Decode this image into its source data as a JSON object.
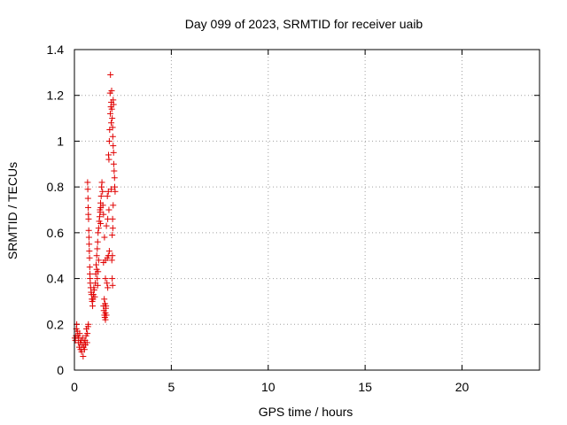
{
  "chart_data": {
    "type": "scatter",
    "title": "Day 099 of 2023, SRMTID for receiver uaib",
    "xlabel": "GPS time / hours",
    "ylabel": "SRMTID / TECUs",
    "xlim": [
      0,
      24
    ],
    "ylim": [
      0,
      1.4
    ],
    "xticks": [
      0,
      5,
      10,
      15,
      20
    ],
    "xtick_labels": [
      "0",
      "5",
      "10",
      "15",
      "20"
    ],
    "yticks": [
      0,
      0.2,
      0.4,
      0.6,
      0.8,
      1.0,
      1.2,
      1.4
    ],
    "ytick_labels": [
      "0",
      "0.2",
      "0.4",
      "0.6",
      "0.8",
      "1",
      "1.2",
      "1.4"
    ],
    "grid": true,
    "marker": "+",
    "marker_color": "#e00000",
    "series": [
      {
        "points": [
          [
            0.02,
            0.14
          ],
          [
            0.05,
            0.13
          ],
          [
            0.08,
            0.15
          ],
          [
            0.1,
            0.18
          ],
          [
            0.12,
            0.2
          ],
          [
            0.15,
            0.17
          ],
          [
            0.18,
            0.15
          ],
          [
            0.2,
            0.12
          ],
          [
            0.22,
            0.14
          ],
          [
            0.25,
            0.1
          ],
          [
            0.27,
            0.16
          ],
          [
            0.3,
            0.12
          ],
          [
            0.32,
            0.09
          ],
          [
            0.35,
            0.13
          ],
          [
            0.37,
            0.08
          ],
          [
            0.4,
            0.11
          ],
          [
            0.42,
            0.14
          ],
          [
            0.45,
            0.06
          ],
          [
            0.47,
            0.1
          ],
          [
            0.5,
            0.12
          ],
          [
            0.52,
            0.09
          ],
          [
            0.55,
            0.13
          ],
          [
            0.57,
            0.11
          ],
          [
            0.6,
            0.15
          ],
          [
            0.62,
            0.18
          ],
          [
            0.65,
            0.12
          ],
          [
            0.67,
            0.16
          ],
          [
            0.7,
            0.19
          ],
          [
            0.72,
            0.2
          ],
          [
            0.68,
            0.82
          ],
          [
            0.69,
            0.79
          ],
          [
            0.7,
            0.75
          ],
          [
            0.71,
            0.71
          ],
          [
            0.72,
            0.68
          ],
          [
            0.73,
            0.66
          ],
          [
            0.74,
            0.61
          ],
          [
            0.75,
            0.58
          ],
          [
            0.76,
            0.55
          ],
          [
            0.77,
            0.52
          ],
          [
            0.78,
            0.49
          ],
          [
            0.79,
            0.45
          ],
          [
            0.8,
            0.42
          ],
          [
            0.81,
            0.4
          ],
          [
            0.82,
            0.38
          ],
          [
            0.84,
            0.36
          ],
          [
            0.86,
            0.34
          ],
          [
            0.88,
            0.33
          ],
          [
            0.9,
            0.31
          ],
          [
            0.92,
            0.3
          ],
          [
            0.94,
            0.28
          ],
          [
            0.96,
            0.31
          ],
          [
            0.98,
            0.33
          ],
          [
            1.0,
            0.36
          ],
          [
            1.02,
            0.35
          ],
          [
            1.05,
            0.32
          ],
          [
            1.08,
            0.38
          ],
          [
            1.1,
            0.42
          ],
          [
            1.12,
            0.46
          ],
          [
            1.15,
            0.5
          ],
          [
            1.18,
            0.53
          ],
          [
            1.2,
            0.56
          ],
          [
            1.22,
            0.6
          ],
          [
            1.25,
            0.62
          ],
          [
            1.28,
            0.65
          ],
          [
            1.3,
            0.67
          ],
          [
            1.32,
            0.7
          ],
          [
            1.35,
            0.73
          ],
          [
            1.38,
            0.76
          ],
          [
            1.4,
            0.8
          ],
          [
            1.42,
            0.82
          ],
          [
            1.45,
            0.78
          ],
          [
            1.47,
            0.72
          ],
          [
            1.5,
            0.68
          ],
          [
            1.35,
            0.64
          ],
          [
            1.33,
            0.69
          ],
          [
            1.36,
            0.71
          ],
          [
            1.15,
            0.44
          ],
          [
            1.18,
            0.4
          ],
          [
            1.2,
            0.37
          ],
          [
            1.22,
            0.43
          ],
          [
            1.25,
            0.48
          ],
          [
            1.5,
            0.28
          ],
          [
            1.52,
            0.26
          ],
          [
            1.55,
            0.24
          ],
          [
            1.57,
            0.23
          ],
          [
            1.6,
            0.25
          ],
          [
            1.62,
            0.27
          ],
          [
            1.65,
            0.24
          ],
          [
            1.58,
            0.29
          ],
          [
            1.54,
            0.31
          ],
          [
            1.6,
            0.22
          ],
          [
            1.63,
            0.28
          ],
          [
            1.5,
            0.47
          ],
          [
            1.55,
            0.58
          ],
          [
            1.6,
            0.48
          ],
          [
            1.65,
            0.63
          ],
          [
            1.7,
            0.49
          ],
          [
            1.72,
            0.66
          ],
          [
            1.75,
            0.5
          ],
          [
            1.78,
            0.7
          ],
          [
            1.8,
            0.52
          ],
          [
            1.75,
            0.78
          ],
          [
            1.7,
            0.76
          ],
          [
            1.6,
            0.4
          ],
          [
            1.68,
            0.38
          ],
          [
            1.72,
            0.36
          ],
          [
            1.76,
            0.94
          ],
          [
            1.78,
            0.92
          ],
          [
            1.8,
            1.0
          ],
          [
            1.82,
            1.05
          ],
          [
            1.85,
            1.12
          ],
          [
            1.88,
            1.15
          ],
          [
            1.9,
            1.08
          ],
          [
            1.92,
            1.22
          ],
          [
            1.84,
            1.21
          ],
          [
            1.86,
            1.29
          ],
          [
            1.9,
            1.17
          ],
          [
            1.93,
            1.14
          ],
          [
            1.95,
            1.1
          ],
          [
            1.97,
            1.06
          ],
          [
            1.98,
            1.02
          ],
          [
            2.0,
            0.98
          ],
          [
            2.02,
            0.95
          ],
          [
            2.03,
            0.9
          ],
          [
            2.05,
            0.87
          ],
          [
            2.07,
            0.84
          ],
          [
            2.08,
            0.8
          ],
          [
            2.1,
            0.78
          ],
          [
            2.0,
            1.18
          ],
          [
            2.02,
            1.16
          ],
          [
            1.98,
            0.62
          ],
          [
            1.95,
            0.59
          ],
          [
            1.97,
            0.66
          ],
          [
            2.0,
            0.72
          ],
          [
            1.9,
            0.79
          ],
          [
            1.95,
            0.4
          ],
          [
            1.97,
            0.37
          ],
          [
            1.93,
            0.48
          ],
          [
            1.96,
            0.5
          ]
        ]
      }
    ]
  }
}
